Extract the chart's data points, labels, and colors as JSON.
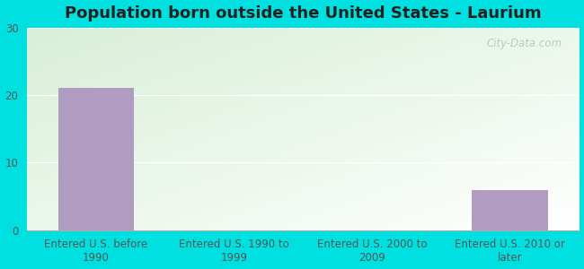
{
  "title": "Population born outside the United States - Laurium",
  "categories": [
    "Entered U.S. before\n1990",
    "Entered U.S. 1990 to\n1999",
    "Entered U.S. 2000 to\n2009",
    "Entered U.S. 2010 or\nlater"
  ],
  "values": [
    21.0,
    0,
    0,
    6.0
  ],
  "bar_color": "#b09cc0",
  "ylim": [
    0,
    30
  ],
  "yticks": [
    0,
    10,
    20,
    30
  ],
  "background_outer": "#00e0e0",
  "watermark": "City-Data.com",
  "title_fontsize": 13,
  "tick_fontsize": 8.5,
  "bar_width": 0.55,
  "gradient_colors": [
    "#d8efd8",
    "#f5fff5",
    "#ffffff"
  ],
  "grid_color": "#d8d8d8"
}
